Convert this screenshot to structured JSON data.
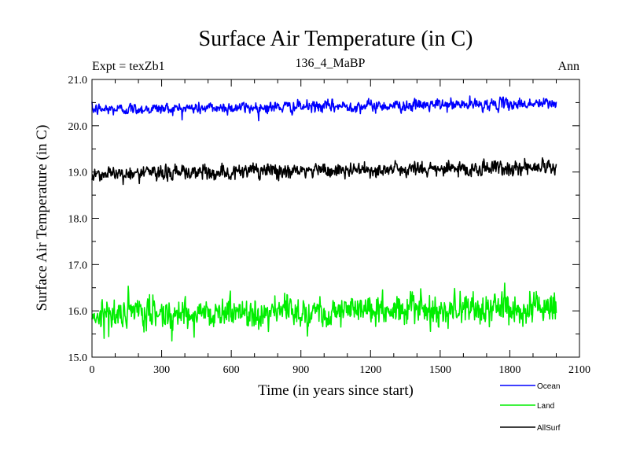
{
  "chart_data": {
    "type": "line",
    "title": "Surface Air Temperature (in C)",
    "subtitle_left": "Expt = texZb1",
    "subtitle_center": "136_4_MaBP",
    "subtitle_right": "Ann",
    "xlabel": "Time (in years since start)",
    "ylabel": "Surface Air Temperature (in C)",
    "xlim": [
      0,
      2100
    ],
    "ylim": [
      15.0,
      21.0
    ],
    "x_ticks": [
      0,
      300,
      600,
      900,
      1200,
      1500,
      1800,
      2100
    ],
    "x_tick_labels": [
      "0",
      "300",
      "600",
      "900",
      "1200",
      "1500",
      "1800",
      "2100"
    ],
    "y_ticks": [
      15,
      16,
      17,
      18,
      19,
      20,
      21
    ],
    "y_tick_labels": [
      "15.0",
      "16.0",
      "17.0",
      "18.0",
      "19.0",
      "20.0",
      "21.0"
    ],
    "x_range": [
      0,
      2000
    ],
    "series": [
      {
        "name": "Ocean",
        "color": "#0000ff",
        "start": 20.35,
        "end": 20.48,
        "noise": 0.06,
        "min": 20.05,
        "max": 20.75
      },
      {
        "name": "Land",
        "color": "#00ee00",
        "start": 15.92,
        "end": 16.08,
        "noise": 0.16,
        "min": 15.35,
        "max": 16.65
      },
      {
        "name": "AllSurf",
        "color": "#000000",
        "start": 18.96,
        "end": 19.1,
        "noise": 0.08,
        "min": 18.7,
        "max": 19.4
      }
    ],
    "legend": {
      "position": "bottom-right",
      "entries": [
        "Ocean",
        "Land",
        "AllSurf"
      ]
    }
  }
}
